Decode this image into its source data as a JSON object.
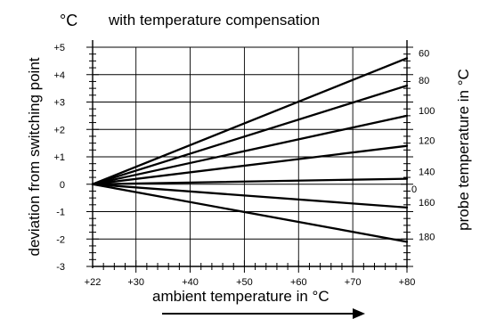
{
  "chart_data": {
    "type": "line",
    "title": "with temperature compensation",
    "y_unit": "°C",
    "xlabel": "ambient temperature in °C",
    "ylabel": "deviation from switching point",
    "y2label": "probe temperature in °C",
    "xlim": [
      22,
      80
    ],
    "ylim": [
      -3,
      5
    ],
    "x_ticks": [
      {
        "value": 22,
        "label": "+22"
      },
      {
        "value": 30,
        "label": "+30"
      },
      {
        "value": 40,
        "label": "+40"
      },
      {
        "value": 50,
        "label": "+50"
      },
      {
        "value": 60,
        "label": "+60"
      },
      {
        "value": 70,
        "label": "+70"
      },
      {
        "value": 80,
        "label": "+80"
      }
    ],
    "y_ticks": [
      {
        "value": 5,
        "label": "+5"
      },
      {
        "value": 4,
        "label": "+4"
      },
      {
        "value": 3,
        "label": "+3"
      },
      {
        "value": 2,
        "label": "+2"
      },
      {
        "value": 1,
        "label": "+1"
      },
      {
        "value": 0,
        "label": "0"
      },
      {
        "value": -1,
        "label": "-1"
      },
      {
        "value": -2,
        "label": "-2"
      },
      {
        "value": -3,
        "label": "-3"
      }
    ],
    "y2_zero_label": "0",
    "grid": true,
    "series": [
      {
        "name": "60",
        "x": [
          22,
          80
        ],
        "y": [
          0,
          4.6
        ]
      },
      {
        "name": "80",
        "x": [
          22,
          80
        ],
        "y": [
          0,
          3.6
        ]
      },
      {
        "name": "100",
        "x": [
          22,
          80
        ],
        "y": [
          0,
          2.5
        ]
      },
      {
        "name": "120",
        "x": [
          22,
          80
        ],
        "y": [
          0,
          1.4
        ]
      },
      {
        "name": "140",
        "x": [
          22,
          80
        ],
        "y": [
          0,
          0.2
        ]
      },
      {
        "name": "160",
        "x": [
          22,
          80
        ],
        "y": [
          0,
          -0.85
        ]
      },
      {
        "name": "180",
        "x": [
          22,
          80
        ],
        "y": [
          0,
          -2.1
        ]
      }
    ]
  }
}
